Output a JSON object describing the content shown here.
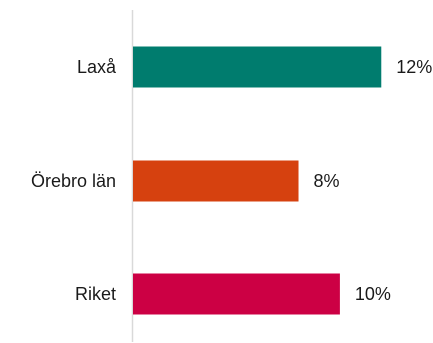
{
  "chart_data": {
    "type": "bar",
    "orientation": "horizontal",
    "categories": [
      "Laxå",
      "Örebro län",
      "Riket"
    ],
    "values": [
      12,
      8,
      10
    ],
    "value_labels": [
      "12%",
      "8%",
      "10%"
    ],
    "unit": "%",
    "bar_colors": [
      "#007c6e",
      "#d6410f",
      "#cc0044"
    ],
    "axis_color": "#d9d9d9",
    "xlim": [
      0,
      14.5
    ],
    "title": "",
    "xlabel": "",
    "ylabel": "",
    "grid": false,
    "legend": "none"
  }
}
